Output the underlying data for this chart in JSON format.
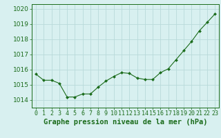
{
  "x": [
    0,
    1,
    2,
    3,
    4,
    5,
    6,
    7,
    8,
    9,
    10,
    11,
    12,
    13,
    14,
    15,
    16,
    17,
    18,
    19,
    20,
    21,
    22,
    23
  ],
  "y": [
    1015.7,
    1015.3,
    1015.3,
    1015.1,
    1014.2,
    1014.2,
    1014.4,
    1014.4,
    1014.85,
    1015.25,
    1015.55,
    1015.8,
    1015.75,
    1015.45,
    1015.35,
    1015.35,
    1015.8,
    1016.05,
    1016.65,
    1017.25,
    1017.85,
    1018.55,
    1019.1,
    1019.65
  ],
  "line_color": "#1a6b1a",
  "marker_color": "#1a6b1a",
  "bg_color": "#d8f0f0",
  "grid_color": "#b8dada",
  "xlabel": "Graphe pression niveau de la mer (hPa)",
  "xlabel_color": "#1a6b1a",
  "ylim": [
    1013.5,
    1020.3
  ],
  "yticks": [
    1014,
    1015,
    1016,
    1017,
    1018,
    1019,
    1020
  ],
  "xticks": [
    0,
    1,
    2,
    3,
    4,
    5,
    6,
    7,
    8,
    9,
    10,
    11,
    12,
    13,
    14,
    15,
    16,
    17,
    18,
    19,
    20,
    21,
    22,
    23
  ],
  "xtick_labels": [
    "0",
    "1",
    "2",
    "3",
    "4",
    "5",
    "6",
    "7",
    "8",
    "9",
    "10",
    "11",
    "12",
    "13",
    "14",
    "15",
    "16",
    "17",
    "18",
    "19",
    "20",
    "21",
    "22",
    "23"
  ],
  "tick_color": "#1a6b1a",
  "font_size_label": 7.5,
  "font_size_tick": 6.5
}
